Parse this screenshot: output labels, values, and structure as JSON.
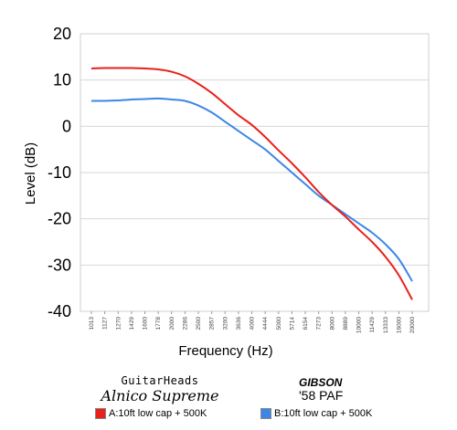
{
  "chart_data": {
    "type": "line",
    "xlabel": "Frequency (Hz)",
    "ylabel": "Level (dB)",
    "ylim": [
      -40,
      20
    ],
    "yticks": [
      "20",
      "10",
      "0",
      "-10",
      "-20",
      "-30",
      "-40"
    ],
    "categories": [
      "1013",
      "1127",
      "1270",
      "1429",
      "1600",
      "1778",
      "2000",
      "2286",
      "2500",
      "2857",
      "3200",
      "3636",
      "4000",
      "4444",
      "5000",
      "5714",
      "6154",
      "7273",
      "8000",
      "8889",
      "10000",
      "11429",
      "13333",
      "16000",
      "20000"
    ],
    "grid": true,
    "series": [
      {
        "name": "A:10ft low cap + 500K",
        "color": "#e8211a",
        "values": [
          12.5,
          12.6,
          12.6,
          12.6,
          12.5,
          12.3,
          11.8,
          10.8,
          9.2,
          7.2,
          4.8,
          2.4,
          0.3,
          -2.3,
          -5.2,
          -8.0,
          -11.0,
          -14.2,
          -17.0,
          -19.5,
          -22.3,
          -25.0,
          -28.2,
          -32.2,
          -37.5
        ]
      },
      {
        "name": "B:10ft low cap + 500K",
        "color": "#3d86e8",
        "values": [
          5.5,
          5.5,
          5.6,
          5.8,
          5.9,
          6.0,
          5.8,
          5.5,
          4.5,
          3.0,
          1.0,
          -1.0,
          -3.0,
          -5.0,
          -7.5,
          -10.0,
          -12.5,
          -15.0,
          -17.0,
          -19.0,
          -21.0,
          -23.0,
          -25.5,
          -28.7,
          -33.5
        ]
      }
    ]
  },
  "legend": {
    "brand_a_top": "GuitarHeads",
    "brand_a_bottom": "Alnico Supreme",
    "brand_b_top": "GIBSON",
    "brand_b_bottom": "'58 PAF"
  }
}
